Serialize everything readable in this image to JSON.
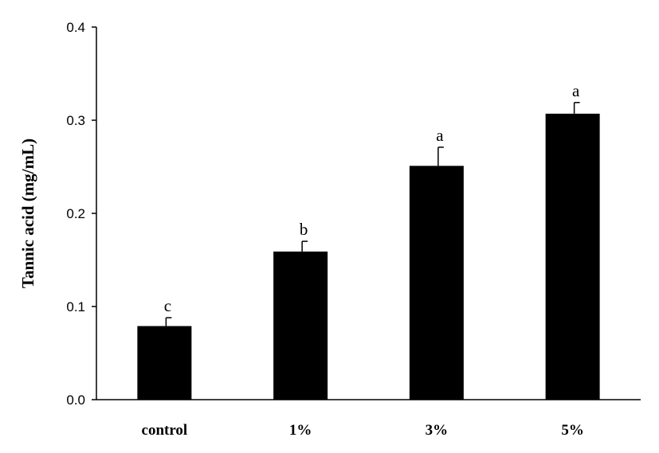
{
  "chart_data": {
    "type": "bar",
    "title": "",
    "xlabel": "",
    "ylabel": "Tannic acid (mg/mL)",
    "ylim": [
      0,
      0.4
    ],
    "yticks": [
      "0.0",
      "0.1",
      "0.2",
      "0.3",
      "0.4"
    ],
    "categories": [
      "control",
      "1%",
      "3%",
      "5%"
    ],
    "values": [
      0.079,
      0.159,
      0.251,
      0.307
    ],
    "errors": [
      0.009,
      0.011,
      0.02,
      0.012
    ],
    "significance": [
      "c",
      "b",
      "a",
      "a"
    ],
    "bar_color": "#000000",
    "grid": false,
    "legend": false
  }
}
